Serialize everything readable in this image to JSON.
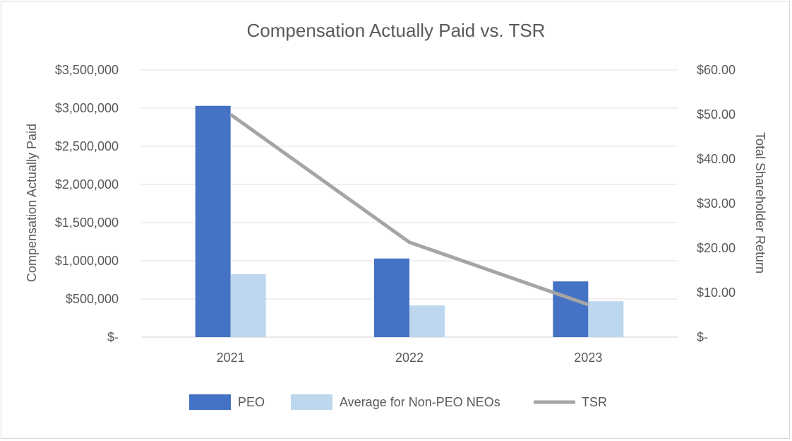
{
  "chart_data": {
    "type": "bar",
    "title": "Compensation Actually Paid vs. TSR",
    "categories": [
      "2021",
      "2022",
      "2023"
    ],
    "series": [
      {
        "name": "PEO",
        "type": "bar",
        "axis": "left",
        "color": "#4472c4",
        "values": [
          3030000,
          1030000,
          730000
        ]
      },
      {
        "name": "Average for Non-PEO NEOs",
        "type": "bar",
        "axis": "left",
        "color": "#bdd7ee",
        "values": [
          825000,
          415000,
          470000
        ]
      },
      {
        "name": "TSR",
        "type": "line",
        "axis": "right",
        "color": "#a5a5a5",
        "values": [
          50.0,
          21.3,
          7.3
        ]
      }
    ],
    "ylabel": "Compensation Actually Paid",
    "y2label": "Total Shareholder Return",
    "ylim": [
      0,
      3500000
    ],
    "y2lim": [
      0,
      60
    ],
    "yticks": [
      0,
      500000,
      1000000,
      1500000,
      2000000,
      2500000,
      3000000,
      3500000
    ],
    "ytick_labels": [
      "$-",
      "$500,000",
      "$1,000,000",
      "$1,500,000",
      "$2,000,000",
      "$2,500,000",
      "$3,000,000",
      "$3,500,000"
    ],
    "y2ticks": [
      0,
      10,
      20,
      30,
      40,
      50,
      60
    ],
    "y2tick_labels": [
      "$-",
      "$10.00",
      "$20.00",
      "$30.00",
      "$40.00",
      "$50.00",
      "$60.00"
    ],
    "grid": true,
    "legend": "bottom"
  }
}
